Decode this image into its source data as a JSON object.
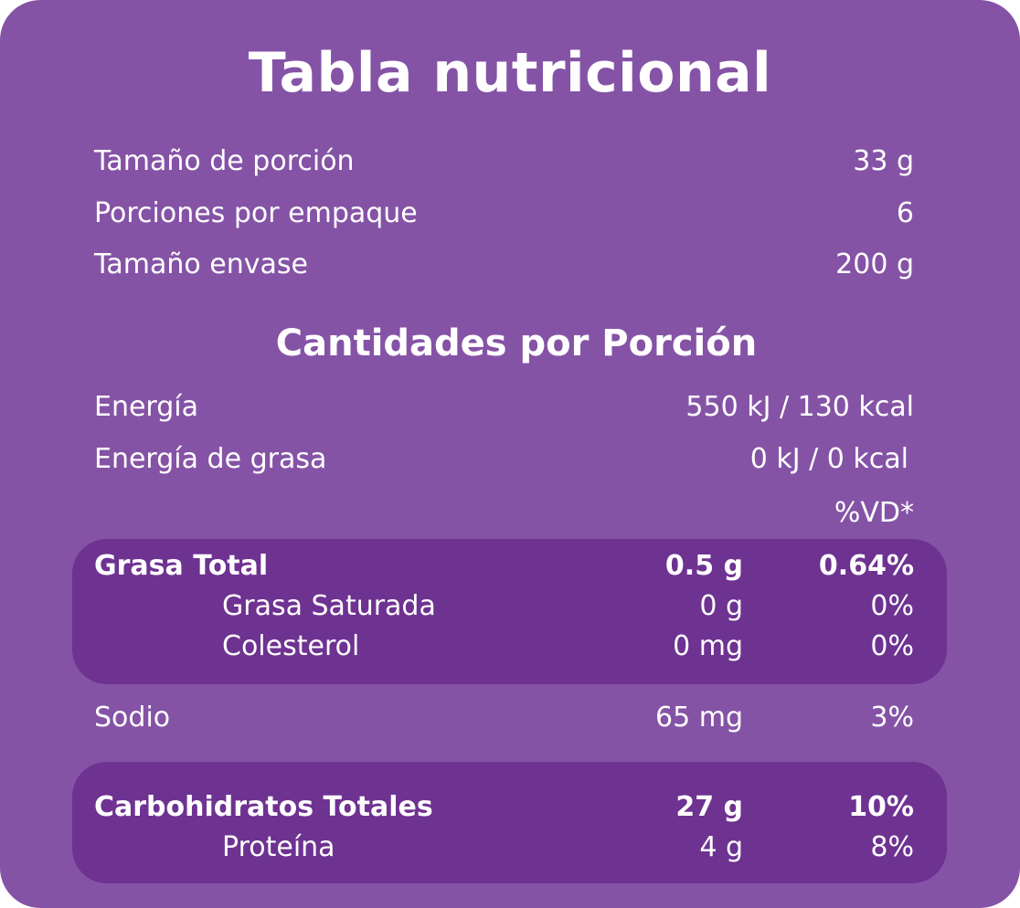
{
  "title": "Tabla nutricional",
  "serving_info": [
    {
      "label": "Tamaño de porción",
      "value": "33 g"
    },
    {
      "label": "Porciones por empaque",
      "value": "6"
    },
    {
      "label": "Tamaño envase",
      "value": "200 g"
    }
  ],
  "section_title": "Cantidades por Porción",
  "energy": [
    {
      "label": "Energía",
      "value": "550 kJ / 130 kcal"
    },
    {
      "label": "Energía de grasa",
      "value": "0 kJ / 0 kcal"
    }
  ],
  "dv_header": "%VD*",
  "fat_group": {
    "total": {
      "label": "Grasa Total",
      "amount": "0.5 g",
      "dv": "0.64%"
    },
    "saturated": {
      "label": "Grasa Saturada",
      "amount": "0 g",
      "dv": "0%"
    },
    "cholesterol": {
      "label": "Colesterol",
      "amount": "0 mg",
      "dv": "0%"
    }
  },
  "sodium": {
    "label": "Sodio",
    "amount": "65 mg",
    "dv": "3%"
  },
  "carb_group": {
    "total": {
      "label": "Carbohidratos Totales",
      "amount": "27 g",
      "dv": "10%"
    },
    "protein": {
      "label": "Proteína",
      "amount": "4 g",
      "dv": "8%"
    }
  },
  "colors": {
    "panel": "#8553a6",
    "highlight_box": "#6e3291",
    "text": "#ffffff"
  }
}
